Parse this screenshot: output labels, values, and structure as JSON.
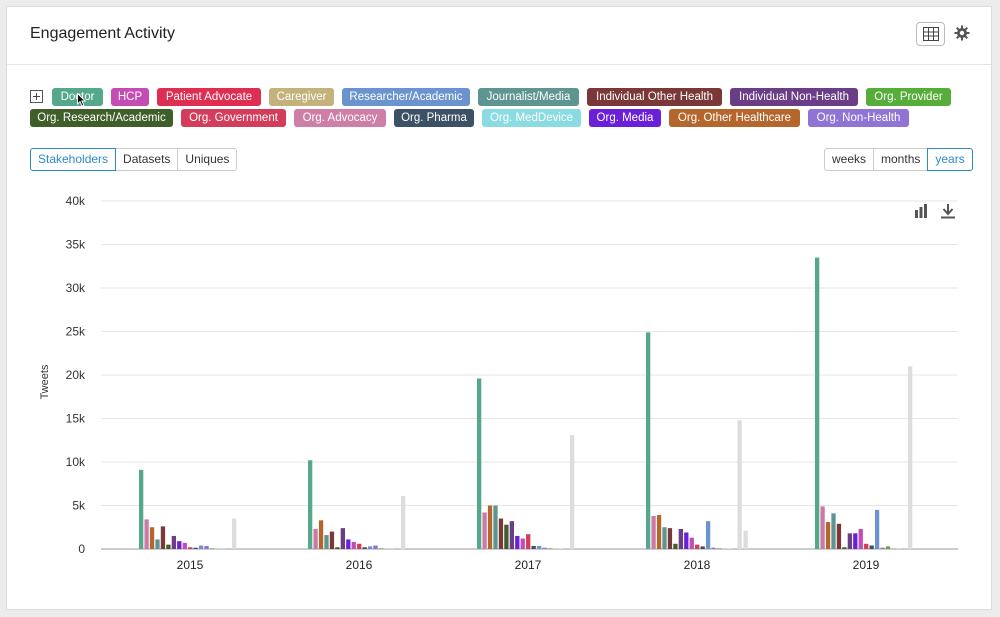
{
  "title": "Engagement Activity",
  "stakeholder_tags": [
    {
      "label": "Doctor",
      "color": "#55a88a"
    },
    {
      "label": "HCP",
      "color": "#c44cb5"
    },
    {
      "label": "Patient Advocate",
      "color": "#de2f52"
    },
    {
      "label": "Caregiver",
      "color": "#c4b27c"
    },
    {
      "label": "Researcher/Academic",
      "color": "#6b94cf"
    },
    {
      "label": "Journalist/Media",
      "color": "#5e9590"
    },
    {
      "label": "Individual Other Health",
      "color": "#7a3838"
    },
    {
      "label": "Individual Non-Health",
      "color": "#6b3d86"
    },
    {
      "label": "Org. Provider",
      "color": "#56ad3a"
    },
    {
      "label": "Org. Research/Academic",
      "color": "#3f5e29"
    },
    {
      "label": "Org. Government",
      "color": "#d33d5b"
    },
    {
      "label": "Org. Advocacy",
      "color": "#cf7fa7"
    },
    {
      "label": "Org. Pharma",
      "color": "#3c5066"
    },
    {
      "label": "Org. MedDevice",
      "color": "#8adbe2"
    },
    {
      "label": "Org. Media",
      "color": "#6a1fd8"
    },
    {
      "label": "Org. Other Healthcare",
      "color": "#b5662c"
    },
    {
      "label": "Org. Non-Health",
      "color": "#8f74d6"
    }
  ],
  "view_tabs": [
    "Stakeholders",
    "Datasets",
    "Uniques"
  ],
  "active_view": "Stakeholders",
  "period_tabs": [
    "weeks",
    "months",
    "years"
  ],
  "active_period": "years",
  "chart_data": {
    "type": "bar",
    "ylabel": "Tweets",
    "ylim": [
      0,
      40000
    ],
    "yticks": [
      "0",
      "5k",
      "10k",
      "15k",
      "20k",
      "25k",
      "30k",
      "35k",
      "40k"
    ],
    "grid": true,
    "categories": [
      "2015",
      "2016",
      "2017",
      "2018",
      "2019"
    ],
    "series": [
      {
        "color": "#55a88a",
        "values": [
          9100,
          10200,
          19600,
          24900,
          33500
        ]
      },
      {
        "color": "#cc79a7",
        "values": [
          3400,
          2300,
          4200,
          3800,
          4900
        ]
      },
      {
        "color": "#b5662c",
        "values": [
          2500,
          3300,
          5000,
          3900,
          3100
        ]
      },
      {
        "color": "#5e9590",
        "values": [
          1100,
          1600,
          5000,
          2500,
          4100
        ]
      },
      {
        "color": "#7a3838",
        "values": [
          2600,
          2000,
          3500,
          2400,
          2900
        ]
      },
      {
        "color": "#3f5e29",
        "values": [
          500,
          200,
          2800,
          600,
          200
        ]
      },
      {
        "color": "#6b3d86",
        "values": [
          1500,
          2400,
          3200,
          2300,
          1800
        ]
      },
      {
        "color": "#6a1fd8",
        "values": [
          900,
          1100,
          1500,
          1900,
          1800
        ]
      },
      {
        "color": "#c44cb5",
        "values": [
          700,
          800,
          1200,
          1300,
          2300
        ]
      },
      {
        "color": "#d33d5b",
        "values": [
          200,
          600,
          1700,
          500,
          600
        ]
      },
      {
        "color": "#3c5066",
        "values": [
          150,
          200,
          350,
          300,
          400
        ]
      },
      {
        "color": "#6b94cf",
        "values": [
          400,
          300,
          350,
          3200,
          4500
        ]
      },
      {
        "color": "#8f74d6",
        "values": [
          350,
          400,
          150,
          150,
          150
        ]
      },
      {
        "color": "#56ad3a",
        "values": [
          80,
          80,
          80,
          80,
          300
        ]
      },
      {
        "color": "#c4b27c",
        "values": [
          60,
          60,
          60,
          60,
          80
        ]
      },
      {
        "color": "#8adbe2",
        "values": [
          60,
          60,
          60,
          60,
          60
        ]
      },
      {
        "color": "#dddddd",
        "values": [
          3500,
          6100,
          13100,
          2100,
          21000
        ]
      }
    ],
    "extra_bars": [
      {
        "category": "2018",
        "value": 14800,
        "color": "#dddddd"
      }
    ]
  }
}
